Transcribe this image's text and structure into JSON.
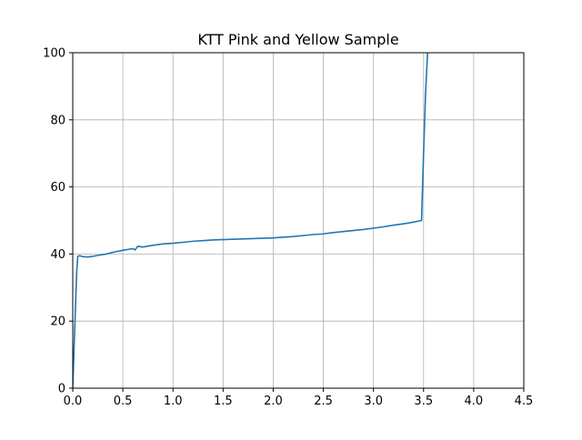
{
  "chart_data": {
    "type": "line",
    "title": "KTT Pink and Yellow Sample",
    "xlabel": "",
    "ylabel": "",
    "xlim": [
      0.0,
      4.5
    ],
    "ylim": [
      0,
      100
    ],
    "x_ticks": [
      "0.0",
      "0.5",
      "1.0",
      "1.5",
      "2.0",
      "2.5",
      "3.0",
      "3.5",
      "4.0",
      "4.5"
    ],
    "y_ticks": [
      "0",
      "20",
      "40",
      "60",
      "80",
      "100"
    ],
    "grid": true,
    "legend": "none",
    "series": [
      {
        "color": "#1f77b4",
        "x": [
          0.0,
          0.02,
          0.04,
          0.05,
          0.07,
          0.1,
          0.15,
          0.2,
          0.25,
          0.3,
          0.35,
          0.4,
          0.5,
          0.6,
          0.62,
          0.65,
          0.7,
          0.8,
          0.9,
          1.0,
          1.1,
          1.2,
          1.3,
          1.4,
          1.5,
          1.6,
          1.7,
          1.8,
          1.9,
          2.0,
          2.1,
          2.2,
          2.3,
          2.4,
          2.5,
          2.6,
          2.7,
          2.8,
          2.9,
          3.0,
          3.1,
          3.2,
          3.3,
          3.4,
          3.48,
          3.5,
          3.52,
          3.54
        ],
        "y": [
          0,
          18,
          35,
          39.3,
          39.5,
          39.2,
          39.1,
          39.3,
          39.6,
          39.8,
          40.1,
          40.5,
          41.1,
          41.6,
          41.2,
          42.3,
          42.1,
          42.6,
          43.0,
          43.2,
          43.5,
          43.8,
          44.0,
          44.2,
          44.3,
          44.4,
          44.5,
          44.6,
          44.7,
          44.8,
          45.0,
          45.2,
          45.5,
          45.8,
          46.0,
          46.4,
          46.7,
          47.0,
          47.3,
          47.7,
          48.1,
          48.6,
          49.0,
          49.5,
          50.0,
          70.0,
          88.0,
          100.0
        ]
      }
    ]
  },
  "colors": {
    "line": "#1f77b4",
    "grid": "#b0b0b0",
    "axes": "#000000",
    "background": "#ffffff"
  }
}
